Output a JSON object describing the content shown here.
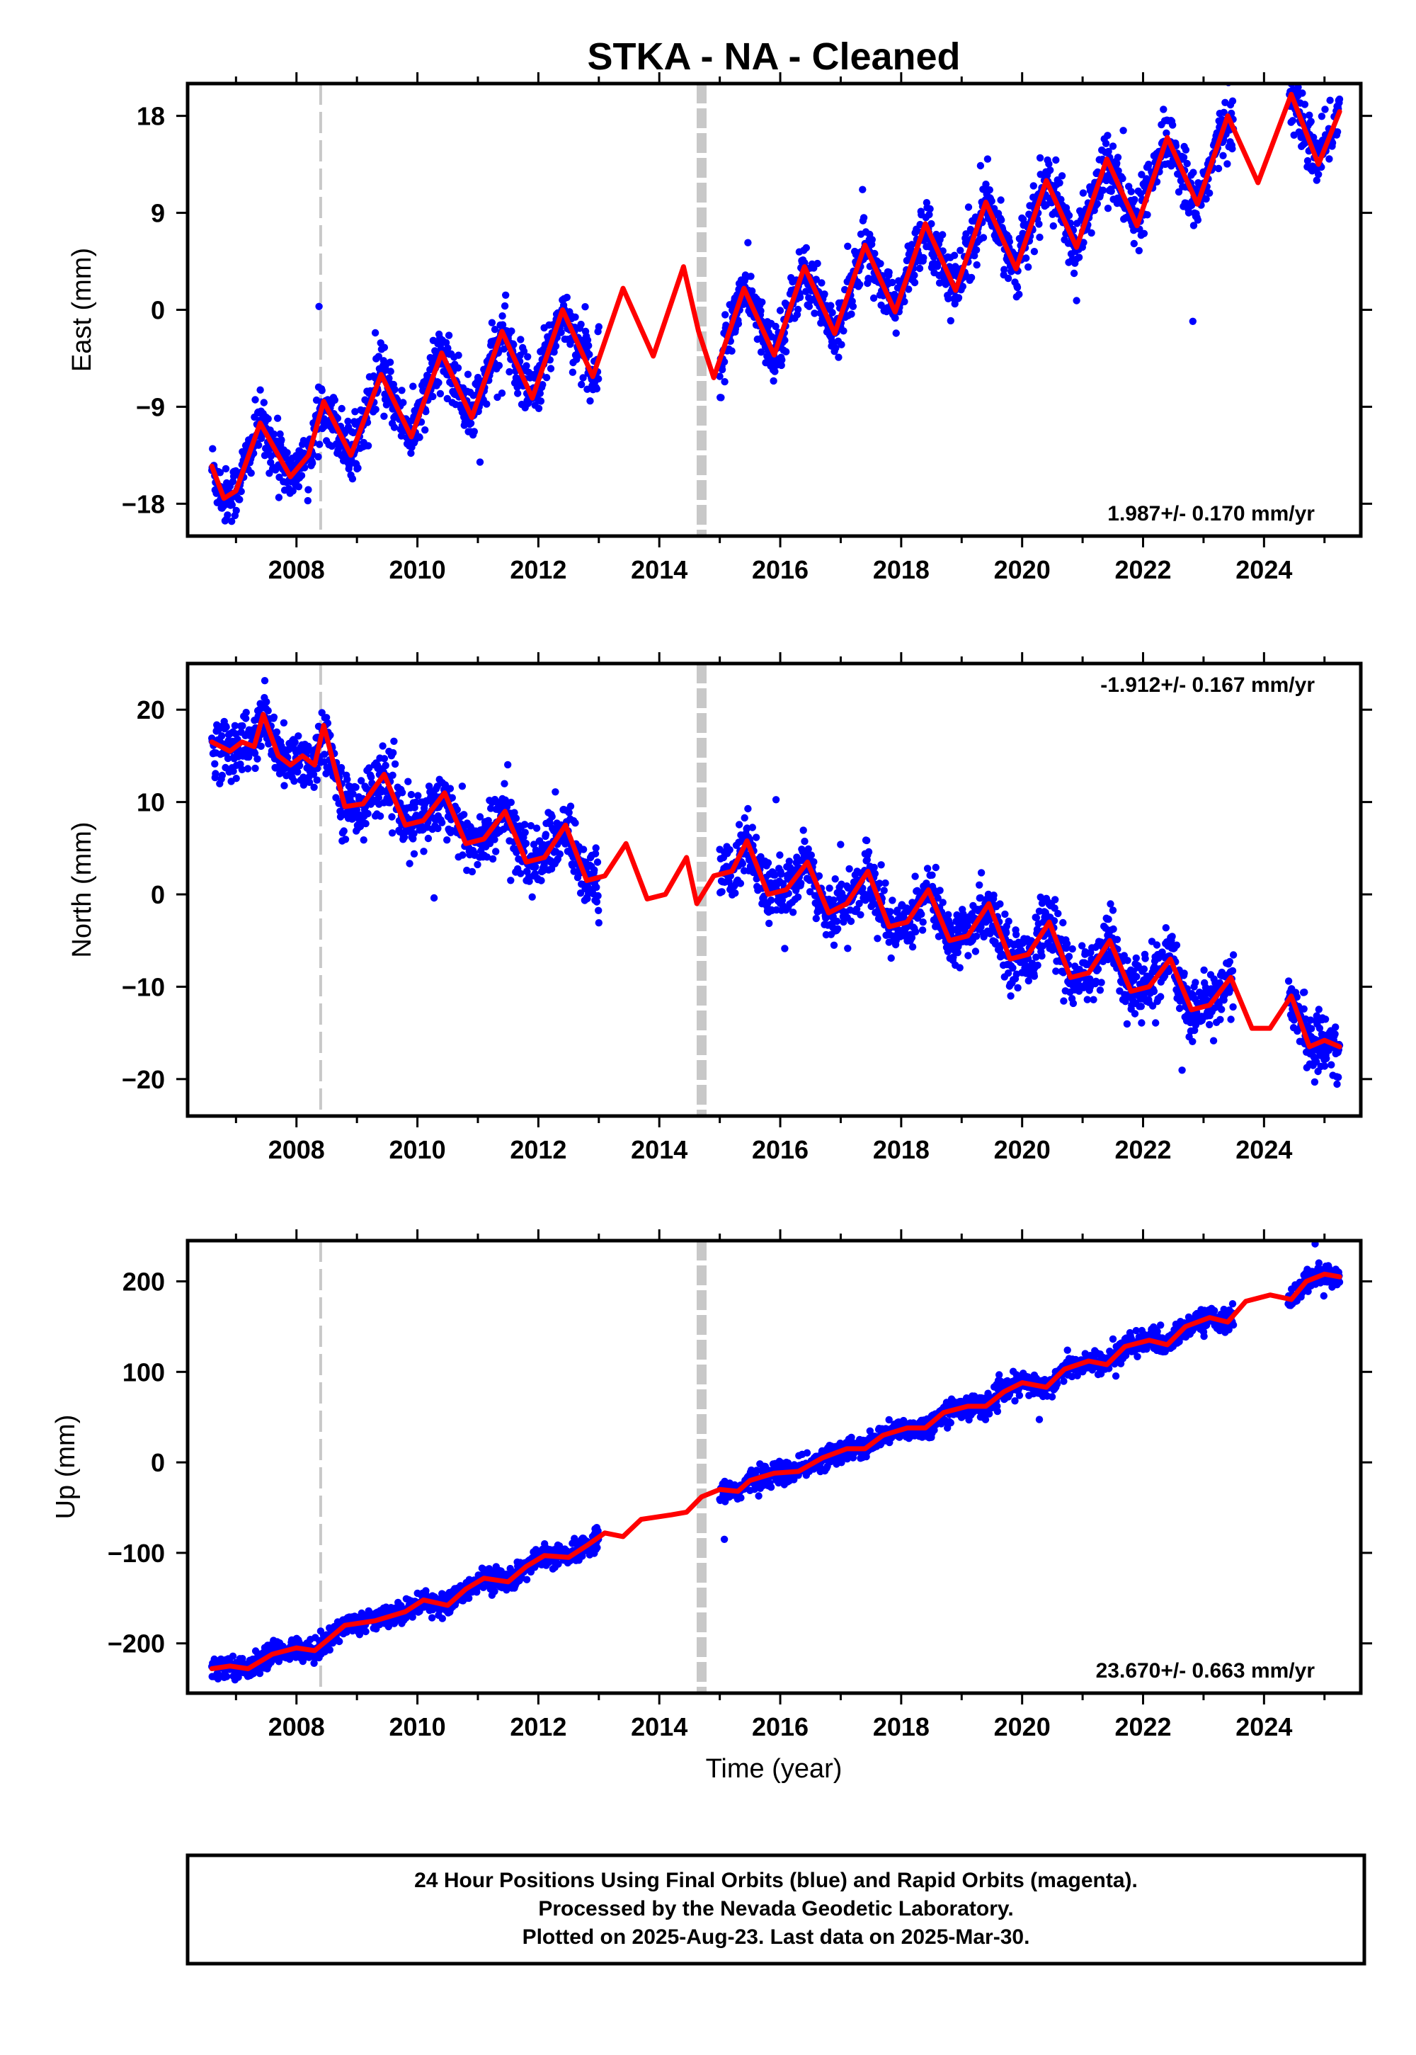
{
  "title": "STKA  - NA - Cleaned",
  "xlabel": "Time (year)",
  "footer": {
    "line1": "24 Hour Positions Using Final Orbits (blue) and Rapid Orbits (magenta).",
    "line2": "Processed by the Nevada Geodetic Laboratory.",
    "line3": "Plotted on 2025-Aug-23. Last data on 2025-Mar-30."
  },
  "colors": {
    "data": "#0000ff",
    "model": "#ff0000",
    "break_line": "#c8c8c8",
    "frame": "#000000"
  },
  "chart_data": [
    {
      "type": "scatter",
      "component": "east",
      "ylabel": "East (mm)",
      "xlim": [
        2006.2,
        2025.6
      ],
      "ylim": [
        -21,
        21
      ],
      "xticks": [
        2008,
        2010,
        2012,
        2014,
        2016,
        2018,
        2020,
        2022,
        2024
      ],
      "yticks": [
        -18,
        -9,
        0,
        9,
        18
      ],
      "yticklabels": [
        "−18",
        "−9",
        "0",
        "9",
        "18"
      ],
      "rate_label": "1.987+/- 0.170 mm/yr",
      "rate_position": "bottom-right",
      "breaks": [
        {
          "x": 2008.4,
          "style": "thin-dashed"
        },
        {
          "x": 2014.7,
          "style": "thick-dashed"
        }
      ],
      "data_spans": [
        [
          2006.6,
          2013.0
        ],
        [
          2015.0,
          2023.5
        ],
        [
          2024.4,
          2025.25
        ]
      ],
      "series": [
        {
          "name": "Final Orbits (blue)",
          "kind": "points",
          "trend": {
            "x0": 2006.6,
            "y0": -14.5,
            "rate": 1.987
          },
          "annual_amplitude": 3.2,
          "annual_phase": 0.42,
          "noise_sd": 1.3
        },
        {
          "name": "model",
          "kind": "line",
          "x_range": [
            2006.6,
            2025.25
          ],
          "points": [
            [
              2006.6,
              -14.5
            ],
            [
              2006.8,
              -17.5
            ],
            [
              2007.0,
              -16.8
            ],
            [
              2007.4,
              -10.5
            ],
            [
              2007.9,
              -15.5
            ],
            [
              2008.2,
              -13.5
            ],
            [
              2008.45,
              -8.5
            ],
            [
              2008.9,
              -13.5
            ],
            [
              2009.4,
              -6
            ],
            [
              2009.9,
              -11.8
            ],
            [
              2010.4,
              -4
            ],
            [
              2010.9,
              -10
            ],
            [
              2011.4,
              -2
            ],
            [
              2011.9,
              -8.2
            ],
            [
              2012.4,
              0
            ],
            [
              2012.9,
              -6.2
            ],
            [
              2013.4,
              2
            ],
            [
              2013.9,
              -4.3
            ],
            [
              2014.4,
              4
            ],
            [
              2014.65,
              -2
            ],
            [
              2014.9,
              -6.3
            ],
            [
              2015.4,
              2
            ],
            [
              2015.9,
              -4.2
            ],
            [
              2016.4,
              4
            ],
            [
              2016.9,
              -2.2
            ],
            [
              2017.4,
              6
            ],
            [
              2017.9,
              -0.2
            ],
            [
              2018.4,
              8
            ],
            [
              2018.9,
              1.8
            ],
            [
              2019.4,
              10
            ],
            [
              2019.9,
              3.8
            ],
            [
              2020.4,
              12
            ],
            [
              2020.9,
              5.8
            ],
            [
              2021.4,
              14
            ],
            [
              2021.9,
              7.8
            ],
            [
              2022.4,
              16
            ],
            [
              2022.9,
              9.8
            ],
            [
              2023.4,
              18
            ],
            [
              2023.9,
              11.8
            ],
            [
              2024.45,
              20
            ],
            [
              2024.9,
              13.5
            ],
            [
              2025.25,
              18.4
            ]
          ]
        }
      ]
    },
    {
      "type": "scatter",
      "component": "north",
      "ylabel": "North (mm)",
      "xlim": [
        2006.2,
        2025.6
      ],
      "ylim": [
        -24,
        25
      ],
      "xticks": [
        2008,
        2010,
        2012,
        2014,
        2016,
        2018,
        2020,
        2022,
        2024
      ],
      "yticks": [
        -20,
        -10,
        0,
        10,
        20
      ],
      "yticklabels": [
        "−20",
        "−10",
        "0",
        "10",
        "20"
      ],
      "rate_label": "-1.912+/- 0.167 mm/yr",
      "rate_position": "top-right",
      "breaks": [
        {
          "x": 2008.4,
          "style": "thin-dashed"
        },
        {
          "x": 2014.7,
          "style": "thick-dashed"
        }
      ],
      "data_spans": [
        [
          2006.6,
          2013.0
        ],
        [
          2015.0,
          2023.5
        ],
        [
          2024.4,
          2025.25
        ]
      ],
      "series": [
        {
          "name": "Final Orbits (blue)",
          "kind": "points",
          "trend": {
            "x0": 2006.6,
            "y0": 16.5,
            "rate": -1.912
          },
          "annual_amplitude": 2.0,
          "annual_phase": 0.42,
          "noise_sd": 1.6
        },
        {
          "name": "model",
          "kind": "line",
          "x_range": [
            2006.6,
            2025.25
          ],
          "points": [
            [
              2006.6,
              16.5
            ],
            [
              2006.9,
              15.5
            ],
            [
              2007.1,
              16.5
            ],
            [
              2007.3,
              16
            ],
            [
              2007.45,
              19.5
            ],
            [
              2007.7,
              15
            ],
            [
              2007.9,
              14
            ],
            [
              2008.1,
              15
            ],
            [
              2008.3,
              14
            ],
            [
              2008.45,
              18.3
            ],
            [
              2008.8,
              9.5
            ],
            [
              2009.1,
              9.8
            ],
            [
              2009.45,
              13
            ],
            [
              2009.8,
              7.5
            ],
            [
              2010.1,
              8
            ],
            [
              2010.45,
              11
            ],
            [
              2010.8,
              5.5
            ],
            [
              2011.1,
              6
            ],
            [
              2011.45,
              9
            ],
            [
              2011.8,
              3.5
            ],
            [
              2012.1,
              4
            ],
            [
              2012.45,
              7.5
            ],
            [
              2012.8,
              1.5
            ],
            [
              2013.1,
              2
            ],
            [
              2013.45,
              5.5
            ],
            [
              2013.8,
              -0.5
            ],
            [
              2014.1,
              0
            ],
            [
              2014.45,
              4
            ],
            [
              2014.62,
              -1
            ],
            [
              2014.9,
              2
            ],
            [
              2015.2,
              2.5
            ],
            [
              2015.45,
              5.8
            ],
            [
              2015.8,
              0
            ],
            [
              2016.1,
              0.5
            ],
            [
              2016.45,
              3.5
            ],
            [
              2016.8,
              -2
            ],
            [
              2017.1,
              -1
            ],
            [
              2017.45,
              2.5
            ],
            [
              2017.8,
              -3.5
            ],
            [
              2018.1,
              -3
            ],
            [
              2018.45,
              0.5
            ],
            [
              2018.8,
              -5
            ],
            [
              2019.1,
              -4.5
            ],
            [
              2019.45,
              -1
            ],
            [
              2019.8,
              -7
            ],
            [
              2020.1,
              -6.5
            ],
            [
              2020.45,
              -3
            ],
            [
              2020.8,
              -9
            ],
            [
              2021.1,
              -8.5
            ],
            [
              2021.45,
              -5
            ],
            [
              2021.8,
              -10.5
            ],
            [
              2022.1,
              -10
            ],
            [
              2022.45,
              -7
            ],
            [
              2022.8,
              -12.5
            ],
            [
              2023.1,
              -12
            ],
            [
              2023.45,
              -9
            ],
            [
              2023.8,
              -14.5
            ],
            [
              2024.1,
              -14.5
            ],
            [
              2024.45,
              -11
            ],
            [
              2024.75,
              -16.5
            ],
            [
              2025.0,
              -15.8
            ],
            [
              2025.25,
              -16.5
            ]
          ]
        }
      ]
    },
    {
      "type": "scatter",
      "component": "up",
      "ylabel": "Up (mm)",
      "xlim": [
        2006.2,
        2025.6
      ],
      "ylim": [
        -255,
        245
      ],
      "xticks": [
        2008,
        2010,
        2012,
        2014,
        2016,
        2018,
        2020,
        2022,
        2024
      ],
      "yticks": [
        -200,
        -100,
        0,
        100,
        200
      ],
      "yticklabels": [
        "−200",
        "−100",
        "0",
        "100",
        "200"
      ],
      "rate_label": "23.670+/- 0.663 mm/yr",
      "rate_position": "bottom-right",
      "breaks": [
        {
          "x": 2008.4,
          "style": "thin-dashed"
        },
        {
          "x": 2014.7,
          "style": "thick-dashed"
        }
      ],
      "data_spans": [
        [
          2006.6,
          2013.0
        ],
        [
          2015.0,
          2023.5
        ],
        [
          2024.4,
          2025.25
        ]
      ],
      "series": [
        {
          "name": "Final Orbits (blue)",
          "kind": "points",
          "trend": {
            "x0": 2006.6,
            "y0": -228,
            "rate": 23.67
          },
          "annual_amplitude": 5,
          "annual_phase": 0.2,
          "noise_sd": 6
        },
        {
          "name": "model",
          "kind": "line",
          "x_range": [
            2006.6,
            2025.25
          ],
          "points": [
            [
              2006.6,
              -228
            ],
            [
              2006.9,
              -225
            ],
            [
              2007.2,
              -228
            ],
            [
              2007.6,
              -212
            ],
            [
              2008.0,
              -205
            ],
            [
              2008.3,
              -208
            ],
            [
              2008.5,
              -197
            ],
            [
              2008.8,
              -180
            ],
            [
              2009.3,
              -175
            ],
            [
              2009.8,
              -165
            ],
            [
              2010.1,
              -152
            ],
            [
              2010.5,
              -158
            ],
            [
              2010.8,
              -140
            ],
            [
              2011.1,
              -128
            ],
            [
              2011.5,
              -132
            ],
            [
              2011.8,
              -115
            ],
            [
              2012.1,
              -103
            ],
            [
              2012.5,
              -105
            ],
            [
              2012.8,
              -92
            ],
            [
              2013.1,
              -78
            ],
            [
              2013.4,
              -82
            ],
            [
              2013.7,
              -63
            ],
            [
              2014.2,
              -58
            ],
            [
              2014.45,
              -55
            ],
            [
              2014.7,
              -38
            ],
            [
              2015.0,
              -30
            ],
            [
              2015.3,
              -32
            ],
            [
              2015.5,
              -20
            ],
            [
              2015.9,
              -12
            ],
            [
              2016.3,
              -10
            ],
            [
              2016.7,
              5
            ],
            [
              2017.1,
              15
            ],
            [
              2017.4,
              15
            ],
            [
              2017.7,
              30
            ],
            [
              2018.1,
              38
            ],
            [
              2018.4,
              38
            ],
            [
              2018.7,
              55
            ],
            [
              2019.1,
              62
            ],
            [
              2019.4,
              62
            ],
            [
              2019.7,
              78
            ],
            [
              2020.0,
              88
            ],
            [
              2020.4,
              83
            ],
            [
              2020.7,
              103
            ],
            [
              2021.1,
              112
            ],
            [
              2021.4,
              108
            ],
            [
              2021.7,
              128
            ],
            [
              2022.1,
              135
            ],
            [
              2022.4,
              130
            ],
            [
              2022.7,
              150
            ],
            [
              2023.1,
              160
            ],
            [
              2023.4,
              155
            ],
            [
              2023.7,
              178
            ],
            [
              2024.1,
              185
            ],
            [
              2024.45,
              180
            ],
            [
              2024.7,
              200
            ],
            [
              2025.0,
              208
            ],
            [
              2025.25,
              205
            ]
          ]
        }
      ]
    }
  ]
}
